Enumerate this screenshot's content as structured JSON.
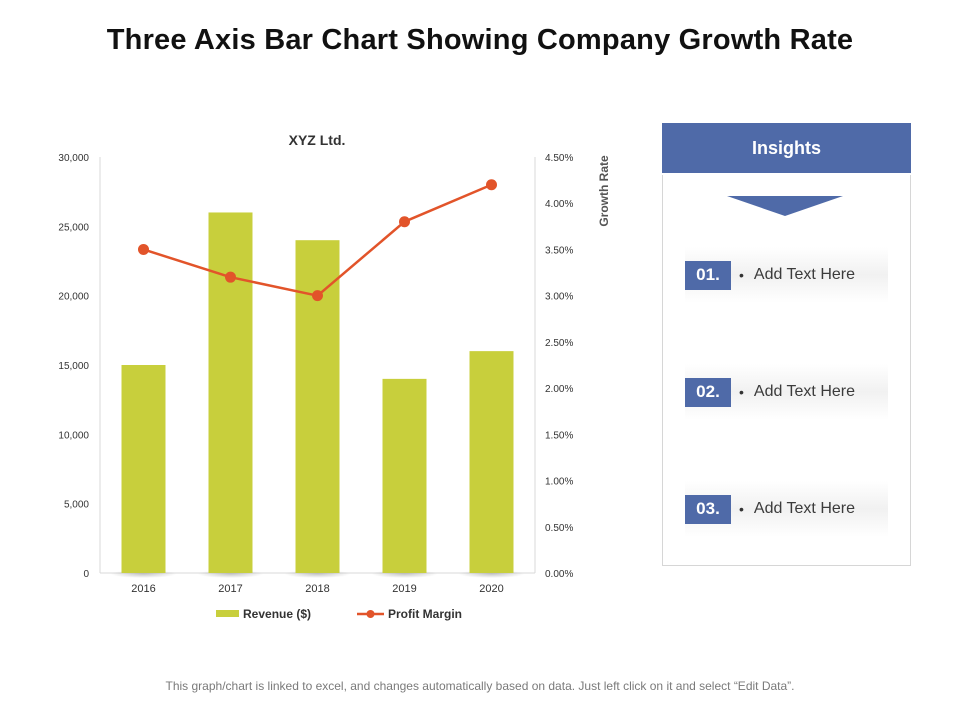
{
  "page": {
    "title": "Three Axis Bar Chart Showing Company Growth Rate",
    "footnote": "This graph/chart is linked to excel, and changes automatically based on data. Just left click on it and select “Edit Data”."
  },
  "chart_data": {
    "type": "bar",
    "title": "XYZ Ltd.",
    "categories": [
      "2016",
      "2017",
      "2018",
      "2019",
      "2020"
    ],
    "series": [
      {
        "name": "Revenue ($)",
        "kind": "bar",
        "axis": "left",
        "color": "#c8cf3c",
        "values": [
          15000,
          26000,
          24000,
          14000,
          16000
        ]
      },
      {
        "name": "Profit Margin",
        "kind": "line",
        "axis": "right",
        "color": "#e2542a",
        "values": [
          3.5,
          3.2,
          3.0,
          3.8,
          4.2
        ]
      }
    ],
    "y_left": {
      "min": 0,
      "max": 30000,
      "ticks": [
        "0",
        "5,000",
        "10,000",
        "15,000",
        "20,000",
        "25,000",
        "30,000"
      ]
    },
    "y_right": {
      "min": 0,
      "max": 4.5,
      "label": "Growth Rate",
      "ticks": [
        "0.00%",
        "0.50%",
        "1.00%",
        "1.50%",
        "2.00%",
        "2.50%",
        "3.00%",
        "3.50%",
        "4.00%",
        "4.50%"
      ]
    },
    "legend": [
      "Revenue ($)",
      "Profit Margin"
    ],
    "legend_position": "bottom",
    "grid": false
  },
  "insights": {
    "header": "Insights",
    "items": [
      {
        "number": "01.",
        "bullet": "•",
        "text": "Add Text Here"
      },
      {
        "number": "02.",
        "bullet": "•",
        "text": "Add Text Here"
      },
      {
        "number": "03.",
        "bullet": "•",
        "text": "Add Text Here"
      }
    ]
  },
  "colors": {
    "accent": "#4f6aa8",
    "bar": "#c8cf3c",
    "line": "#e2542a"
  }
}
